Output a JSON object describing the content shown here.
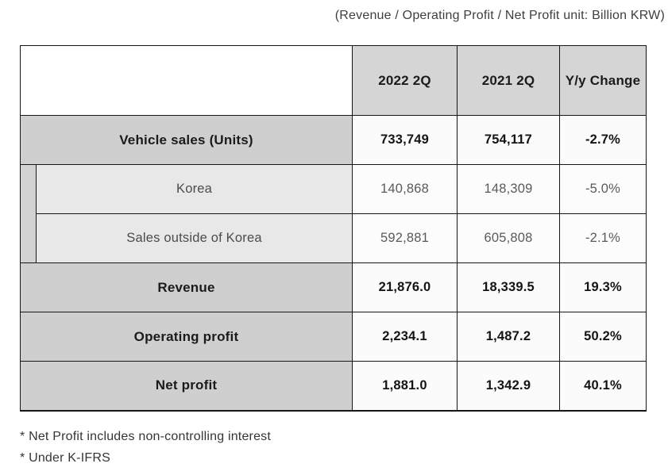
{
  "title": "(Revenue / Operating Profit / Net Profit unit: Billion KRW)",
  "table": {
    "columns": [
      "2022 2Q",
      "2021 2Q",
      "Y/y Change"
    ],
    "rows": [
      {
        "type": "main",
        "label": "Vehicle sales (Units)",
        "values": [
          "733,749",
          "754,117",
          "-2.7%"
        ]
      },
      {
        "type": "sub",
        "label": "Korea",
        "values": [
          "140,868",
          "148,309",
          "-5.0%"
        ]
      },
      {
        "type": "sub",
        "label": "Sales outside of Korea",
        "values": [
          "592,881",
          "605,808",
          "-2.1%"
        ]
      },
      {
        "type": "main",
        "label": "Revenue",
        "values": [
          "21,876.0",
          "18,339.5",
          "19.3%"
        ]
      },
      {
        "type": "main",
        "label": "Operating profit",
        "values": [
          "2,234.1",
          "1,487.2",
          "50.2%"
        ]
      },
      {
        "type": "main",
        "label": "Net profit",
        "values": [
          "1,881.0",
          "1,342.9",
          "40.1%"
        ]
      }
    ]
  },
  "footnotes": [
    "* Net Profit includes non-controlling interest",
    "* Under K-IFRS"
  ],
  "colors": {
    "header_bg": "#d5d5d5",
    "main_row_bg": "#cfcfcf",
    "sub_row_bg": "#e9e8e8",
    "indent_bg": "#d2d2d2",
    "value_cell_bg": "#fbfbfb",
    "border": "#161616",
    "highlight_border": "#000000",
    "text_dark": "#1b1b1b",
    "text_sub": "#5a5a5a"
  }
}
